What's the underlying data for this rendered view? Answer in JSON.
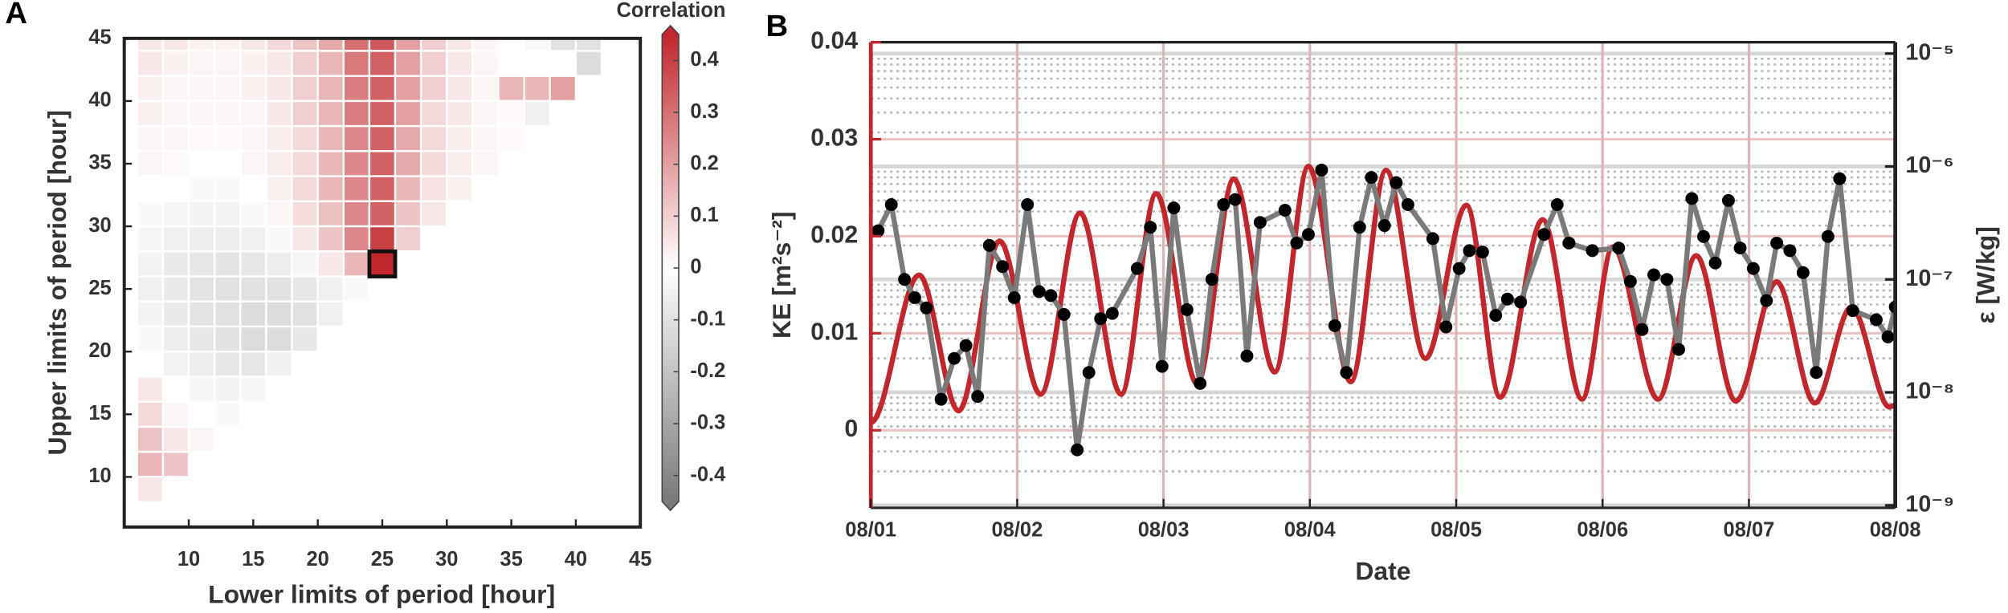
{
  "chart_data": [
    {
      "type": "heatmap",
      "panel_label": "A",
      "xlabel": "Lower limits of period [hour]",
      "ylabel": "Upper limits of period [hour]",
      "xlim": [
        5,
        45
      ],
      "ylim": [
        6,
        45
      ],
      "xticks": [
        10,
        15,
        20,
        25,
        30,
        35,
        40,
        45
      ],
      "yticks": [
        10,
        15,
        20,
        25,
        30,
        35,
        40,
        45
      ],
      "x": [
        7,
        9,
        11,
        13,
        15,
        17,
        19,
        21,
        23,
        25,
        27,
        29,
        31,
        33,
        35,
        37,
        39,
        41,
        43
      ],
      "y": [
        45,
        43,
        41,
        39,
        37,
        35,
        33,
        31,
        29,
        27,
        25,
        23,
        21,
        19,
        17,
        15,
        13,
        11,
        9
      ],
      "values": [
        [
          0.05,
          0.05,
          0.03,
          0.03,
          0.05,
          0.08,
          0.12,
          0.18,
          0.3,
          0.35,
          0.2,
          0.1,
          0.05,
          0.02,
          0,
          -0.02,
          -0.1,
          -0.1,
          0
        ],
        [
          0.05,
          0.03,
          0.02,
          0.02,
          0.03,
          0.05,
          0.1,
          0.15,
          0.28,
          0.33,
          0.2,
          0.1,
          0.05,
          0.02,
          0,
          0,
          0,
          -0.12,
          null
        ],
        [
          0.03,
          0.02,
          0.02,
          0.02,
          0.03,
          0.05,
          0.1,
          0.15,
          0.27,
          0.33,
          0.2,
          0.1,
          0.05,
          0.02,
          0.15,
          0.15,
          0.2,
          null,
          null
        ],
        [
          0.03,
          0.02,
          0.02,
          0.02,
          0.02,
          0.05,
          0.1,
          0.15,
          0.27,
          0.33,
          0.2,
          0.08,
          0.05,
          0.02,
          0.01,
          -0.05,
          null,
          null,
          null
        ],
        [
          0.02,
          0.02,
          0.01,
          0.01,
          0.02,
          0.04,
          0.08,
          0.15,
          0.25,
          0.33,
          0.18,
          0.08,
          0.04,
          0.02,
          0.01,
          null,
          null,
          null,
          null
        ],
        [
          0.02,
          0.01,
          0,
          0,
          0.02,
          0.04,
          0.08,
          0.15,
          0.25,
          0.33,
          0.18,
          0.08,
          0.04,
          0.02,
          null,
          null,
          null,
          null,
          null
        ],
        [
          0,
          0,
          -0.02,
          -0.02,
          0,
          0.03,
          0.08,
          0.15,
          0.25,
          0.33,
          0.15,
          0.06,
          0.03,
          null,
          null,
          null,
          null,
          null,
          null
        ],
        [
          -0.02,
          -0.03,
          -0.04,
          -0.04,
          -0.02,
          0.02,
          0.07,
          0.13,
          0.25,
          0.33,
          0.12,
          0.05,
          null,
          null,
          null,
          null,
          null,
          null,
          null
        ],
        [
          -0.03,
          -0.05,
          -0.06,
          -0.06,
          -0.05,
          -0.02,
          0.05,
          0.12,
          0.25,
          0.4,
          0.1,
          null,
          null,
          null,
          null,
          null,
          null,
          null,
          null
        ],
        [
          -0.04,
          -0.07,
          -0.08,
          -0.09,
          -0.08,
          -0.06,
          -0.03,
          0.05,
          0.15,
          0.45,
          null,
          null,
          null,
          null,
          null,
          null,
          null,
          null,
          null
        ],
        [
          -0.05,
          -0.07,
          -0.09,
          -0.1,
          -0.1,
          -0.1,
          -0.08,
          -0.05,
          -0.02,
          null,
          null,
          null,
          null,
          null,
          null,
          null,
          null,
          null,
          null
        ],
        [
          -0.04,
          -0.07,
          -0.09,
          -0.1,
          -0.12,
          -0.12,
          -0.1,
          -0.05,
          null,
          null,
          null,
          null,
          null,
          null,
          null,
          null,
          null,
          null,
          null
        ],
        [
          -0.02,
          -0.06,
          -0.08,
          -0.1,
          -0.12,
          -0.12,
          -0.08,
          null,
          null,
          null,
          null,
          null,
          null,
          null,
          null,
          null,
          null,
          null,
          null
        ],
        [
          0,
          -0.04,
          -0.06,
          -0.08,
          -0.08,
          -0.05,
          null,
          null,
          null,
          null,
          null,
          null,
          null,
          null,
          null,
          null,
          null,
          null,
          null
        ],
        [
          0.05,
          0,
          -0.03,
          -0.04,
          -0.03,
          null,
          null,
          null,
          null,
          null,
          null,
          null,
          null,
          null,
          null,
          null,
          null,
          null,
          null
        ],
        [
          0.08,
          0.02,
          0,
          -0.02,
          null,
          null,
          null,
          null,
          null,
          null,
          null,
          null,
          null,
          null,
          null,
          null,
          null,
          null,
          null
        ],
        [
          0.12,
          0.05,
          0.02,
          null,
          null,
          null,
          null,
          null,
          null,
          null,
          null,
          null,
          null,
          null,
          null,
          null,
          null,
          null,
          null
        ],
        [
          0.15,
          0.12,
          null,
          null,
          null,
          null,
          null,
          null,
          null,
          null,
          null,
          null,
          null,
          null,
          null,
          null,
          null,
          null,
          null
        ],
        [
          0.05,
          null,
          null,
          null,
          null,
          null,
          null,
          null,
          null,
          null,
          null,
          null,
          null,
          null,
          null,
          null,
          null,
          null,
          null
        ]
      ],
      "highlight": [
        25,
        27
      ],
      "colorbar": {
        "label": "Correlation",
        "lim": [
          -0.45,
          0.45
        ],
        "ticks": [
          -0.4,
          -0.3,
          -0.2,
          -0.1,
          0,
          0.1,
          0.2,
          0.3,
          0.4
        ],
        "colormap": [
          "#7a7a7a",
          "#ffffff",
          "#c1272d"
        ]
      }
    },
    {
      "type": "line",
      "panel_label": "B",
      "xlabel": "Date",
      "ylabel": "KE [m²s⁻²]",
      "y2label": "ε [W/kg]",
      "xlim": [
        0,
        7
      ],
      "xticks": [
        {
          "value": 0,
          "label": "08/01"
        },
        {
          "value": 1,
          "label": "08/02"
        },
        {
          "value": 2,
          "label": "08/03"
        },
        {
          "value": 3,
          "label": "08/04"
        },
        {
          "value": 4,
          "label": "08/05"
        },
        {
          "value": 5,
          "label": "08/06"
        },
        {
          "value": 6,
          "label": "08/07"
        },
        {
          "value": 7,
          "label": "08/08"
        }
      ],
      "ylim": [
        -0.008,
        0.04
      ],
      "yticks": [
        0,
        0.01,
        0.02,
        0.03,
        0.04
      ],
      "ycolor": "#c1272d",
      "y2scale": "log",
      "y2lim": [
        9.5e-10,
        1.26e-05
      ],
      "y2ticks": [
        {
          "value": 1e-09,
          "label": "10⁻⁹"
        },
        {
          "value": 1e-08,
          "label": "10⁻⁸"
        },
        {
          "value": 1e-07,
          "label": "10⁻⁷"
        },
        {
          "value": 1e-06,
          "label": "10⁻⁶"
        },
        {
          "value": 1e-05,
          "label": "10⁻⁵"
        }
      ],
      "y2minorticks": [
        2e-09,
        3e-09,
        4e-09,
        5e-09,
        6e-09,
        7e-09,
        8e-09,
        9e-09,
        2e-08,
        3e-08,
        4e-08,
        5e-08,
        6e-08,
        7e-08,
        8e-08,
        9e-08,
        2e-07,
        3e-07,
        4e-07,
        5e-07,
        6e-07,
        7e-07,
        8e-07,
        9e-07,
        2e-06,
        3e-06,
        4e-06,
        5e-06,
        6e-06,
        7e-06,
        8e-06,
        9e-06
      ],
      "grid": true,
      "series": [
        {
          "color": "#c1272d",
          "x": [
            0,
            0.33,
            0.6,
            0.88,
            1.16,
            1.43,
            1.71,
            1.95,
            2.23,
            2.48,
            2.76,
            2.99,
            3.28,
            3.52,
            3.79,
            4.07,
            4.3,
            4.59,
            4.86,
            5.07,
            5.38,
            5.64,
            5.91,
            6.19,
            6.45,
            6.7,
            6.96,
            7
          ],
          "values": [
            0.0008,
            0.016,
            0.002,
            0.0195,
            0.0037,
            0.0224,
            0.0037,
            0.0244,
            0.0048,
            0.0259,
            0.006,
            0.0272,
            0.005,
            0.0268,
            0.0074,
            0.0232,
            0.0034,
            0.0217,
            0.0032,
            0.0189,
            0.0032,
            0.018,
            0.003,
            0.0153,
            0.0028,
            0.0127,
            0.0024,
            0.0026
          ]
        },
        {
          "color": "#7a7a7a",
          "marker_color": "#000000",
          "axis": "y2",
          "x": [
            0.05,
            0.14,
            0.23,
            0.3,
            0.38,
            0.48,
            0.57,
            0.65,
            0.73,
            0.81,
            0.9,
            0.98,
            1.07,
            1.15,
            1.23,
            1.32,
            1.41,
            1.49,
            1.57,
            1.65,
            1.82,
            1.91,
            1.99,
            2.07,
            2.16,
            2.25,
            2.33,
            2.41,
            2.49,
            2.57,
            2.66,
            2.83,
            2.91,
            2.99,
            3.08,
            3.17,
            3.25,
            3.34,
            3.42,
            3.51,
            3.59,
            3.67,
            3.84,
            3.93,
            4.02,
            4.09,
            4.18,
            4.27,
            4.35,
            4.44,
            4.6,
            4.69,
            4.77,
            4.93,
            5.11,
            5.19,
            5.27,
            5.35,
            5.44,
            5.52,
            5.61,
            5.69,
            5.77,
            5.86,
            5.94,
            6.03,
            6.12,
            6.19,
            6.28,
            6.37,
            6.46,
            6.54,
            6.62,
            6.71,
            6.87,
            6.95,
            7
          ],
          "values": [
            2.7e-07,
            4.6e-07,
            1e-07,
            6.9e-08,
            5.6e-08,
            8.7e-09,
            2e-08,
            2.6e-08,
            9.2e-09,
            2e-07,
            1.3e-07,
            6.9e-08,
            4.6e-07,
            7.8e-08,
            7.2e-08,
            4.9e-08,
            3.1e-09,
            1.5e-08,
            4.5e-08,
            5e-08,
            1.25e-07,
            2.9e-07,
            1.7e-08,
            4.3e-07,
            5.4e-08,
            1.2e-08,
            1e-07,
            4.6e-07,
            5.1e-07,
            2.1e-08,
            3.2e-07,
            4.1e-07,
            2.1e-07,
            2.5e-07,
            9.3e-07,
            3.9e-08,
            1.5e-08,
            2.9e-07,
            8e-07,
            3e-07,
            7.2e-07,
            4.6e-07,
            2.3e-07,
            3.8e-08,
            1.25e-07,
            1.8e-07,
            1.75e-07,
            4.8e-08,
            6.7e-08,
            6.3e-08,
            2.5e-07,
            4.6e-07,
            2.1e-07,
            1.8e-07,
            1.9e-07,
            9.6e-08,
            3.6e-08,
            1.1e-07,
            1e-07,
            2.4e-08,
            5.2e-07,
            2.4e-07,
            1.4e-07,
            5e-07,
            1.9e-07,
            1.25e-07,
            6.5e-08,
            2.1e-07,
            1.8e-07,
            1.15e-07,
            1.5e-08,
            2.4e-07,
            7.8e-07,
            5.3e-08,
            4.4e-08,
            3.1e-08,
            5.7e-08
          ]
        }
      ]
    }
  ]
}
